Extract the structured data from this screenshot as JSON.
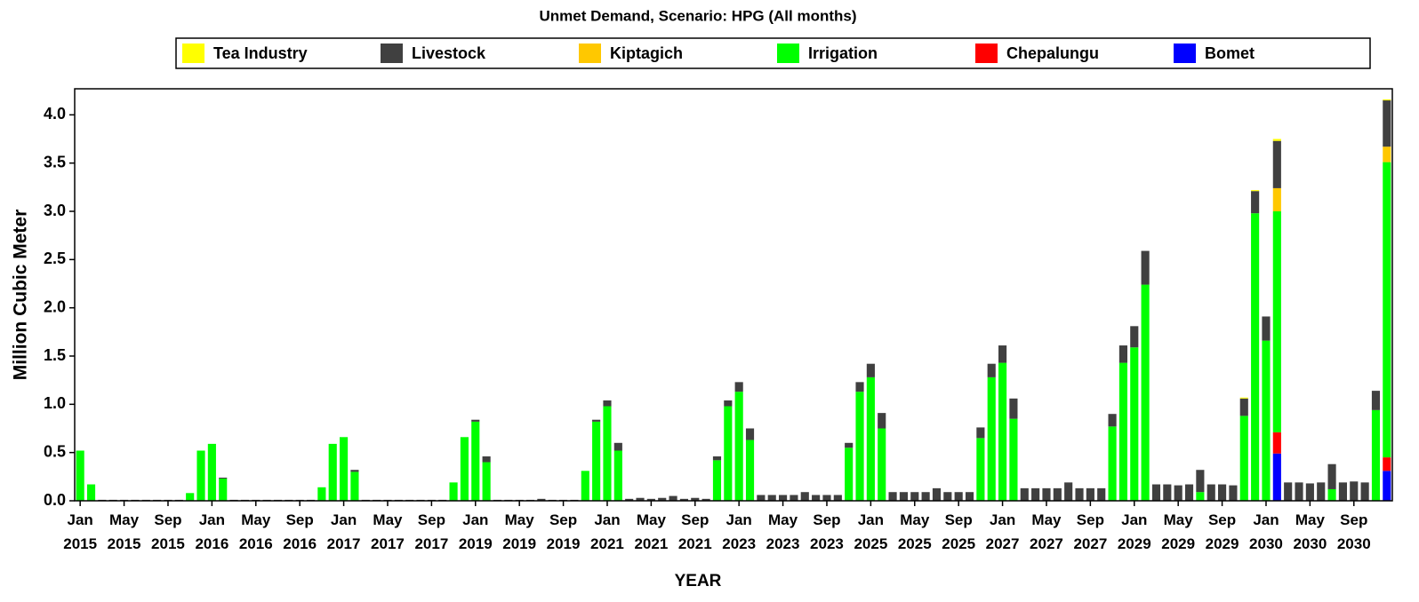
{
  "chart_data": {
    "type": "stacked_bar",
    "title": "Unmet Demand, Scenario: HPG (All months)",
    "x_label": "YEAR",
    "y_label": "Million Cubic Meter",
    "ylim": [
      0,
      4.27
    ],
    "yticks": [
      {
        "value": 0,
        "label": "0.0"
      },
      0.5,
      {
        "value": 1,
        "label": "1.0"
      },
      1.5,
      {
        "value": 2,
        "label": "2.0"
      },
      2.5,
      {
        "value": 3,
        "label": "3.0"
      },
      3.5,
      {
        "value": 4,
        "label": "4.0"
      }
    ],
    "categories": [
      "Jan 2015",
      null,
      null,
      null,
      "May 2015",
      null,
      null,
      null,
      "Sep 2015",
      null,
      null,
      null,
      "Jan 2016",
      null,
      null,
      null,
      "May 2016",
      null,
      null,
      null,
      "Sep 2016",
      null,
      null,
      null,
      "Jan 2017",
      null,
      null,
      null,
      "May 2017",
      null,
      null,
      null,
      "Sep 2017",
      null,
      null,
      null,
      "Jan 2019",
      null,
      null,
      null,
      "May 2019",
      null,
      null,
      null,
      "Sep 2019",
      null,
      null,
      null,
      "Jan 2021",
      null,
      null,
      null,
      "May 2021",
      null,
      null,
      null,
      "Sep 2021",
      null,
      null,
      null,
      "Jan 2023",
      null,
      null,
      null,
      "May 2023",
      null,
      null,
      null,
      "Sep 2023",
      null,
      null,
      null,
      "Jan 2025",
      null,
      null,
      null,
      "May 2025",
      null,
      null,
      null,
      "Sep 2025",
      null,
      null,
      null,
      "Jan 2027",
      null,
      null,
      null,
      "May 2027",
      null,
      null,
      null,
      "Sep 2027",
      null,
      null,
      null,
      "Jan 2029",
      null,
      null,
      null,
      "May 2029",
      null,
      null,
      null,
      "Sep 2029",
      null,
      null,
      null,
      "Jan 2030",
      null,
      null,
      null,
      "May 2030",
      null,
      null,
      null,
      "Sep 2030",
      null,
      null,
      null
    ],
    "series": [
      {
        "name": "Tea Industry",
        "color": "#ffff00",
        "values": [
          0,
          0,
          0,
          0,
          0,
          0,
          0,
          0,
          0,
          0,
          0,
          0,
          0,
          0,
          0,
          0,
          0,
          0,
          0,
          0,
          0,
          0,
          0,
          0,
          0,
          0,
          0,
          0,
          0,
          0,
          0,
          0,
          0,
          0,
          0,
          0,
          0,
          0,
          0,
          0,
          0,
          0,
          0,
          0,
          0,
          0,
          0,
          0,
          0,
          0,
          0,
          0,
          0,
          0,
          0,
          0,
          0,
          0,
          0,
          0,
          0,
          0,
          0,
          0,
          0,
          0,
          0,
          0,
          0,
          0,
          0,
          0,
          0,
          0,
          0,
          0,
          0,
          0,
          0,
          0,
          0,
          0,
          0,
          0,
          0,
          0,
          0,
          0,
          0,
          0,
          0,
          0,
          0,
          0,
          0,
          0,
          0,
          0,
          0,
          0,
          0,
          0,
          0,
          0,
          0,
          0,
          0.01,
          0.01,
          0,
          0.02,
          0,
          0,
          0,
          0,
          0,
          0,
          0,
          0,
          0,
          0.01
        ]
      },
      {
        "name": "Livestock",
        "color": "#404040",
        "values": [
          0,
          0,
          0.01,
          0.01,
          0.01,
          0.01,
          0.01,
          0.01,
          0.01,
          0.01,
          0,
          0,
          0,
          0.01,
          0.01,
          0.01,
          0.01,
          0.01,
          0.01,
          0.01,
          0.01,
          0.01,
          0,
          0,
          0,
          0.02,
          0.01,
          0.01,
          0.01,
          0.01,
          0.01,
          0.01,
          0.01,
          0.01,
          0,
          0,
          0.02,
          0.06,
          0.01,
          0.01,
          0.01,
          0.01,
          0.02,
          0.01,
          0.01,
          0.01,
          0,
          0.02,
          0.06,
          0.08,
          0.02,
          0.03,
          0.02,
          0.03,
          0.05,
          0.02,
          0.03,
          0.02,
          0.04,
          0.06,
          0.1,
          0.12,
          0.06,
          0.06,
          0.06,
          0.06,
          0.09,
          0.06,
          0.06,
          0.06,
          0.05,
          0.1,
          0.14,
          0.16,
          0.09,
          0.09,
          0.09,
          0.09,
          0.13,
          0.09,
          0.09,
          0.09,
          0.11,
          0.14,
          0.18,
          0.21,
          0.13,
          0.13,
          0.13,
          0.13,
          0.19,
          0.13,
          0.13,
          0.13,
          0.13,
          0.18,
          0.22,
          0.35,
          0.17,
          0.17,
          0.16,
          0.17,
          0.23,
          0.17,
          0.17,
          0.16,
          0.18,
          0.23,
          0.25,
          0.49,
          0.19,
          0.19,
          0.18,
          0.19,
          0.26,
          0.19,
          0.2,
          0.19,
          0.2,
          0.48
        ]
      },
      {
        "name": "Kiptagich",
        "color": "#ffc800",
        "values": [
          0,
          0,
          0,
          0,
          0,
          0,
          0,
          0,
          0,
          0,
          0,
          0,
          0,
          0,
          0,
          0,
          0,
          0,
          0,
          0,
          0,
          0,
          0,
          0,
          0,
          0,
          0,
          0,
          0,
          0,
          0,
          0,
          0,
          0,
          0,
          0,
          0,
          0,
          0,
          0,
          0,
          0,
          0,
          0,
          0,
          0,
          0,
          0,
          0,
          0,
          0,
          0,
          0,
          0,
          0,
          0,
          0,
          0,
          0,
          0,
          0,
          0,
          0,
          0,
          0,
          0,
          0,
          0,
          0,
          0,
          0,
          0,
          0,
          0,
          0,
          0,
          0,
          0,
          0,
          0,
          0,
          0,
          0,
          0,
          0,
          0,
          0,
          0,
          0,
          0,
          0,
          0,
          0,
          0,
          0,
          0,
          0,
          0,
          0,
          0,
          0,
          0,
          0,
          0,
          0,
          0,
          0,
          0,
          0,
          0.24,
          0,
          0,
          0,
          0,
          0,
          0,
          0,
          0,
          0,
          0.16
        ]
      },
      {
        "name": "Irrigation",
        "color": "#00ff00",
        "values": [
          0.52,
          0.17,
          0,
          0,
          0,
          0,
          0,
          0,
          0,
          0,
          0.08,
          0.52,
          0.59,
          0.23,
          0,
          0,
          0,
          0,
          0,
          0,
          0,
          0,
          0.14,
          0.59,
          0.66,
          0.3,
          0,
          0,
          0,
          0,
          0,
          0,
          0,
          0,
          0.19,
          0.66,
          0.82,
          0.4,
          0,
          0,
          0,
          0,
          0,
          0,
          0,
          0,
          0.31,
          0.82,
          0.98,
          0.52,
          0,
          0,
          0,
          0,
          0,
          0,
          0,
          0,
          0.42,
          0.98,
          1.13,
          0.63,
          0,
          0,
          0,
          0,
          0,
          0,
          0,
          0,
          0.55,
          1.13,
          1.28,
          0.75,
          0,
          0,
          0,
          0,
          0,
          0,
          0,
          0,
          0.65,
          1.28,
          1.43,
          0.85,
          0,
          0,
          0,
          0,
          0,
          0,
          0,
          0,
          0.77,
          1.43,
          1.59,
          2.24,
          0,
          0,
          0,
          0,
          0.09,
          0,
          0,
          0,
          0.88,
          2.98,
          1.66,
          2.29,
          0,
          0,
          0,
          0,
          0.12,
          0,
          0,
          0,
          0.94,
          3.06
        ]
      },
      {
        "name": "Chepalungu",
        "color": "#ff0000",
        "values": [
          0,
          0,
          0,
          0,
          0,
          0,
          0,
          0,
          0,
          0,
          0,
          0,
          0,
          0,
          0,
          0,
          0,
          0,
          0,
          0,
          0,
          0,
          0,
          0,
          0,
          0,
          0,
          0,
          0,
          0,
          0,
          0,
          0,
          0,
          0,
          0,
          0,
          0,
          0,
          0,
          0,
          0,
          0,
          0,
          0,
          0,
          0,
          0,
          0,
          0,
          0,
          0,
          0,
          0,
          0,
          0,
          0,
          0,
          0,
          0,
          0,
          0,
          0,
          0,
          0,
          0,
          0,
          0,
          0,
          0,
          0,
          0,
          0,
          0,
          0,
          0,
          0,
          0,
          0,
          0,
          0,
          0,
          0,
          0,
          0,
          0,
          0,
          0,
          0,
          0,
          0,
          0,
          0,
          0,
          0,
          0,
          0,
          0,
          0,
          0,
          0,
          0,
          0,
          0,
          0,
          0,
          0,
          0,
          0,
          0.22,
          0,
          0,
          0,
          0,
          0,
          0,
          0,
          0,
          0,
          0.14
        ]
      },
      {
        "name": "Bomet",
        "color": "#0000ff",
        "values": [
          0,
          0,
          0,
          0,
          0,
          0,
          0,
          0,
          0,
          0,
          0,
          0,
          0,
          0,
          0,
          0,
          0,
          0,
          0,
          0,
          0,
          0,
          0,
          0,
          0,
          0,
          0,
          0,
          0,
          0,
          0,
          0,
          0,
          0,
          0,
          0,
          0,
          0,
          0,
          0,
          0,
          0,
          0,
          0,
          0,
          0,
          0,
          0,
          0,
          0,
          0,
          0,
          0,
          0,
          0,
          0,
          0,
          0,
          0,
          0,
          0,
          0,
          0,
          0,
          0,
          0,
          0,
          0,
          0,
          0,
          0,
          0,
          0,
          0,
          0,
          0,
          0,
          0,
          0,
          0,
          0,
          0,
          0,
          0,
          0,
          0,
          0,
          0,
          0,
          0,
          0,
          0,
          0,
          0,
          0,
          0,
          0,
          0,
          0,
          0,
          0,
          0,
          0,
          0,
          0,
          0,
          0,
          0,
          0,
          0.49,
          0,
          0,
          0,
          0,
          0,
          0,
          0,
          0,
          0,
          0.31
        ]
      }
    ]
  }
}
